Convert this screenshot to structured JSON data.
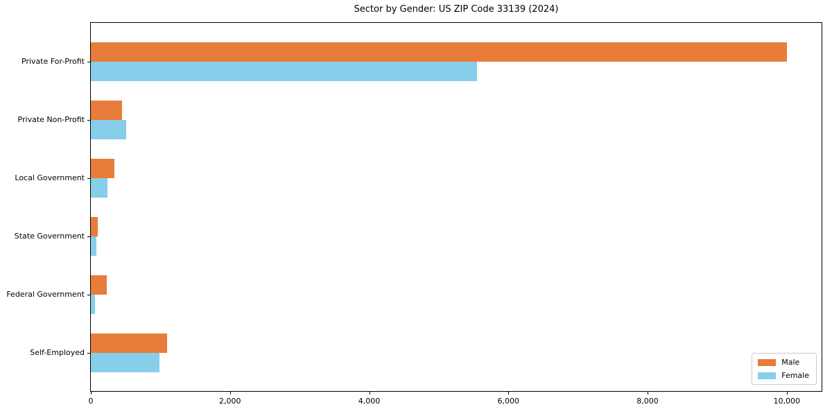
{
  "title": "Sector by Gender: US ZIP Code 33139 (2024)",
  "colors": {
    "male": "#e87d3b",
    "female": "#87ceeb",
    "axis": "#000000",
    "legend_border": "#cccccc",
    "background": "#ffffff"
  },
  "chart_data": {
    "type": "bar",
    "orientation": "horizontal",
    "title": "Sector by Gender: US ZIP Code 33139 (2024)",
    "categories": [
      "Private For-Profit",
      "Private Non-Profit",
      "Local Government",
      "State Government",
      "Federal Government",
      "Self-Employed"
    ],
    "series": [
      {
        "name": "Male",
        "color": "#e87d3b",
        "values": [
          10000,
          450,
          340,
          100,
          225,
          1100
        ]
      },
      {
        "name": "Female",
        "color": "#87ceeb",
        "values": [
          5550,
          510,
          235,
          80,
          60,
          990
        ]
      }
    ],
    "xlabel": "",
    "ylabel": "",
    "xlim": [
      0,
      10500
    ],
    "x_ticks": [
      0,
      2000,
      4000,
      6000,
      8000,
      10000
    ],
    "x_tick_labels": [
      "0",
      "2,000",
      "4,000",
      "6,000",
      "8,000",
      "10,000"
    ],
    "grid": false,
    "legend": {
      "position": "lower right",
      "entries": [
        "Male",
        "Female"
      ]
    }
  }
}
